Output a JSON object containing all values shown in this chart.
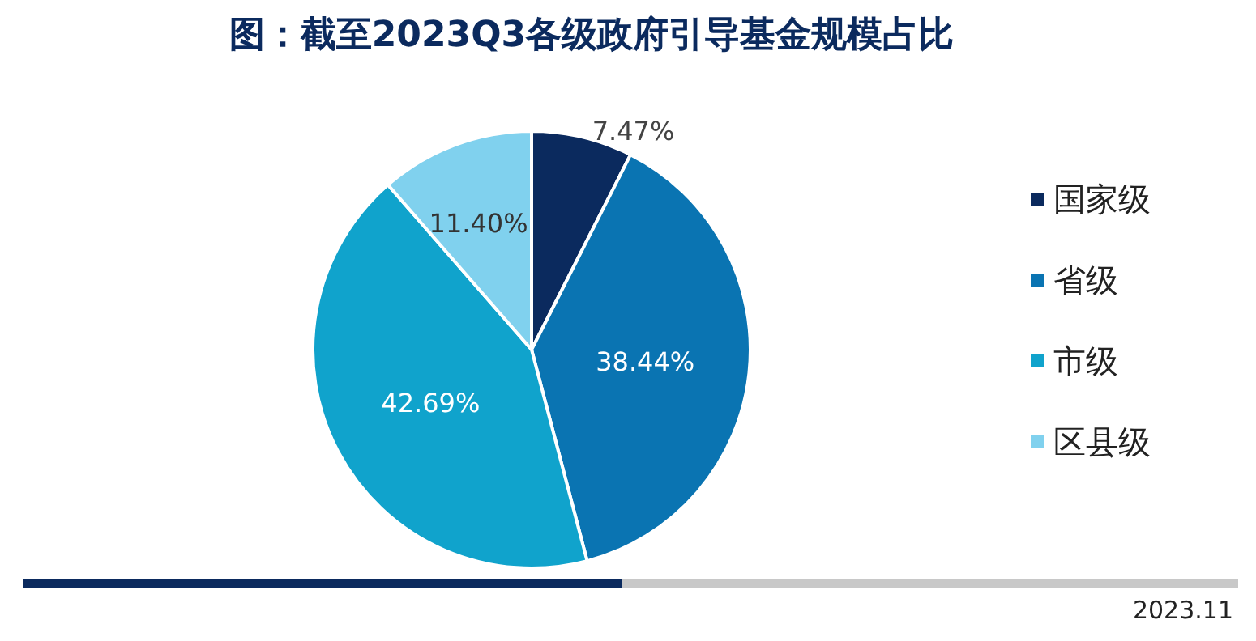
{
  "chart_data": {
    "type": "pie",
    "title": "图：截至2023Q3各级政府引导基金规模占比",
    "categories": [
      "国家级",
      "省级",
      "市级",
      "区县级"
    ],
    "values": [
      7.47,
      38.44,
      42.69,
      11.4
    ],
    "value_labels": [
      "7.47%",
      "38.44%",
      "42.69%",
      "11.40%"
    ],
    "colors": [
      "#0b2a5e",
      "#0a74b2",
      "#10a3cc",
      "#80d1ee"
    ],
    "legend": "right",
    "annotations": [
      "2023.11"
    ]
  }
}
